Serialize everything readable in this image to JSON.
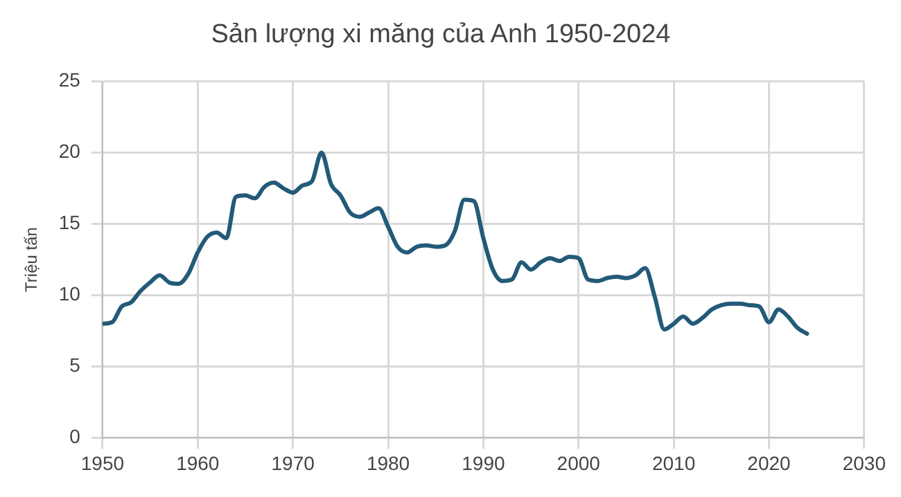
{
  "chart_data": {
    "type": "line",
    "title": "Sản lượng xi măng của Anh 1950-2024",
    "ylabel": "Triệu tấn",
    "x": [
      1950,
      1951,
      1952,
      1953,
      1954,
      1955,
      1956,
      1957,
      1958,
      1959,
      1960,
      1961,
      1962,
      1963,
      1964,
      1965,
      1966,
      1967,
      1968,
      1969,
      1970,
      1971,
      1972,
      1973,
      1974,
      1975,
      1976,
      1977,
      1978,
      1979,
      1980,
      1981,
      1982,
      1983,
      1984,
      1985,
      1986,
      1987,
      1988,
      1989,
      1990,
      1991,
      1992,
      1993,
      1994,
      1995,
      1996,
      1997,
      1998,
      1999,
      2000,
      2001,
      2002,
      2003,
      2004,
      2005,
      2006,
      2007,
      2008,
      2009,
      2010,
      2011,
      2012,
      2013,
      2014,
      2015,
      2016,
      2017,
      2018,
      2019,
      2020,
      2021,
      2022,
      2023,
      2024
    ],
    "series": [
      {
        "color": "#235a78",
        "values": [
          8.0,
          8.1,
          9.2,
          9.5,
          10.3,
          10.9,
          11.4,
          10.9,
          10.8,
          11.5,
          13.0,
          14.1,
          14.4,
          14.0,
          16.9,
          17.0,
          16.8,
          17.6,
          17.9,
          17.5,
          17.2,
          17.7,
          18.0,
          20.0,
          17.8,
          17.0,
          15.8,
          15.5,
          15.8,
          16.1,
          14.8,
          13.4,
          13.0,
          13.4,
          13.5,
          13.4,
          13.5,
          14.5,
          16.7,
          16.6,
          14.0,
          11.8,
          11.0,
          11.1,
          12.3,
          11.8,
          12.3,
          12.6,
          12.4,
          12.7,
          12.6,
          11.1,
          11.0,
          11.2,
          11.3,
          11.2,
          11.4,
          11.9,
          9.9,
          7.6,
          8.0,
          8.5,
          8.0,
          8.4,
          9.0,
          9.3,
          9.4,
          9.4,
          9.3,
          9.2,
          8.1,
          9.0,
          8.5,
          7.7,
          7.3
        ]
      }
    ],
    "xlim": [
      1950,
      2030
    ],
    "xticks": [
      1950,
      1960,
      1970,
      1980,
      1990,
      2000,
      2010,
      2020,
      2030
    ],
    "ylim": [
      0,
      25
    ],
    "yticks": [
      0,
      5,
      10,
      15,
      20,
      25
    ],
    "grid": true,
    "legend": false,
    "marker": "none",
    "line_style": "solid"
  }
}
